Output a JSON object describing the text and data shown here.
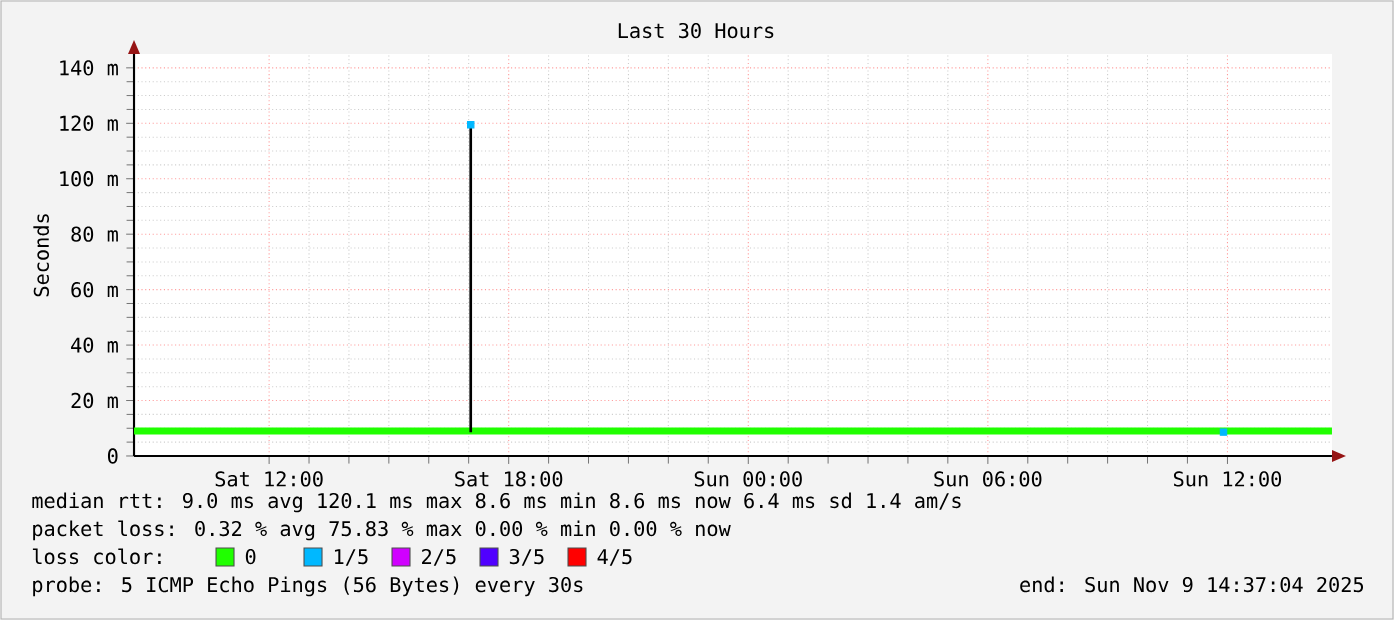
{
  "chart_data": {
    "type": "line",
    "title": "Last 30 Hours",
    "ylabel": "Seconds",
    "legend_title": "loss color:",
    "legend": "bottom",
    "xlim": [
      "2025-11-08T08:37",
      "2025-11-09T14:37"
    ],
    "xticks": [
      {
        "value": "2025-11-08T12:00",
        "label": "Sat 12:00"
      },
      {
        "value": "2025-11-08T18:00",
        "label": "Sat 18:00"
      },
      {
        "value": "2025-11-09T00:00",
        "label": "Sun 00:00"
      },
      {
        "value": "2025-11-09T06:00",
        "label": "Sun 06:00"
      },
      {
        "value": "2025-11-09T12:00",
        "label": "Sun 12:00"
      }
    ],
    "ylim": [
      0,
      145
    ],
    "yticks": [
      {
        "value": 0,
        "label": "0"
      },
      {
        "value": 20,
        "label": "20 m"
      },
      {
        "value": 40,
        "label": "40 m"
      },
      {
        "value": 60,
        "label": "60 m"
      },
      {
        "value": 80,
        "label": "80 m"
      },
      {
        "value": 100,
        "label": "100 m"
      },
      {
        "value": 120,
        "label": "120 m"
      },
      {
        "value": 140,
        "label": "140 m"
      }
    ],
    "grid": true,
    "series": [
      {
        "name": "0",
        "color": "#20ff00",
        "x": [
          "2025-11-08T08:37",
          "2025-11-08T17:00",
          "2025-11-08T17:06",
          "2025-11-09T14:37"
        ],
        "values": [
          9,
          9,
          9,
          9
        ]
      },
      {
        "color": "#000000",
        "x": [
          "2025-11-08T17:03",
          "2025-11-08T17:03"
        ],
        "values": [
          8.6,
          120.1
        ]
      },
      {
        "name": "1/5",
        "color": "#00b8ff",
        "type": "scatter",
        "x": [
          "2025-11-08T17:03",
          "2025-11-09T11:54"
        ],
        "values": [
          119.5,
          8.6
        ]
      },
      {
        "name": "2/5",
        "color": "#d000ff"
      },
      {
        "name": "3/5",
        "color": "#5000ff"
      },
      {
        "name": "4/5",
        "color": "#ff0000"
      }
    ],
    "annotations": [
      "median rtt:  9.0 ms avg  120.1 ms max  8.6 ms min  8.6 ms now  6.4 ms sd  1.4   am/s",
      "packet loss: 0.32 % avg  75.83 % max  0.00 % min  0.00 % now",
      "probe:       5 ICMP Echo Pings (56 Bytes) every 30s",
      "end: Sun Nov  9 14:37:04 2025"
    ]
  }
}
